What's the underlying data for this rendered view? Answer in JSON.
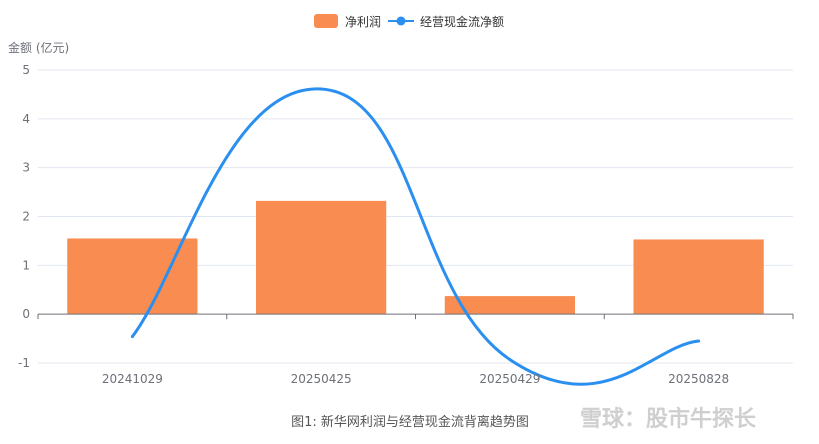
{
  "chart_data": {
    "type": "bar",
    "categories": [
      "20241029",
      "20250425",
      "20250429",
      "20250828"
    ],
    "series": [
      {
        "name": "净利润",
        "type": "bar",
        "values": [
          1.55,
          2.32,
          0.37,
          1.53
        ],
        "color": "#f98c50"
      },
      {
        "name": "经营现金流净额",
        "type": "line",
        "values": [
          -0.46,
          4.61,
          -0.93,
          -0.55
        ],
        "color": "#2b8ff0"
      }
    ],
    "ylabel": "金额 (亿元)",
    "ylim": [
      -1,
      5
    ],
    "yticks": [
      -1,
      0,
      1,
      2,
      3,
      4,
      5
    ],
    "grid": true,
    "legend_position": "top-center"
  },
  "caption": "图1: 新华网利润与经营现金流背离趋势图",
  "watermark": "雪球：股市牛探长"
}
